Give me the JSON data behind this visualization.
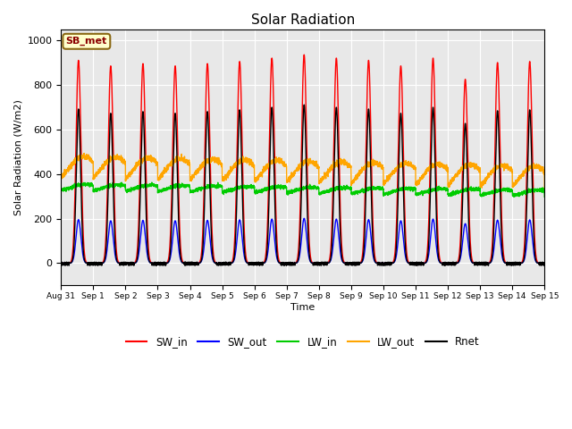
{
  "title": "Solar Radiation",
  "xlabel": "Time",
  "ylabel": "Solar Radiation (W/m2)",
  "ylim": [
    -100,
    1050
  ],
  "annotation": "SB_met",
  "legend_entries": [
    "SW_in",
    "SW_out",
    "LW_in",
    "LW_out",
    "Rnet"
  ],
  "colors": {
    "SW_in": "#FF0000",
    "SW_out": "#0000FF",
    "LW_in": "#00CC00",
    "LW_out": "#FFA500",
    "Rnet": "#000000"
  },
  "xtick_labels": [
    "Aug 31",
    "Sep 1",
    "Sep 2",
    "Sep 3",
    "Sep 4",
    "Sep 5",
    "Sep 6",
    "Sep 7",
    "Sep 8",
    "Sep 9",
    "Sep 10",
    "Sep 11",
    "Sep 12",
    "Sep 13",
    "Sep 14",
    "Sep 15"
  ],
  "bg_color": "#E8E8E8",
  "fig_bg": "#FFFFFF",
  "linewidth": 1.0
}
